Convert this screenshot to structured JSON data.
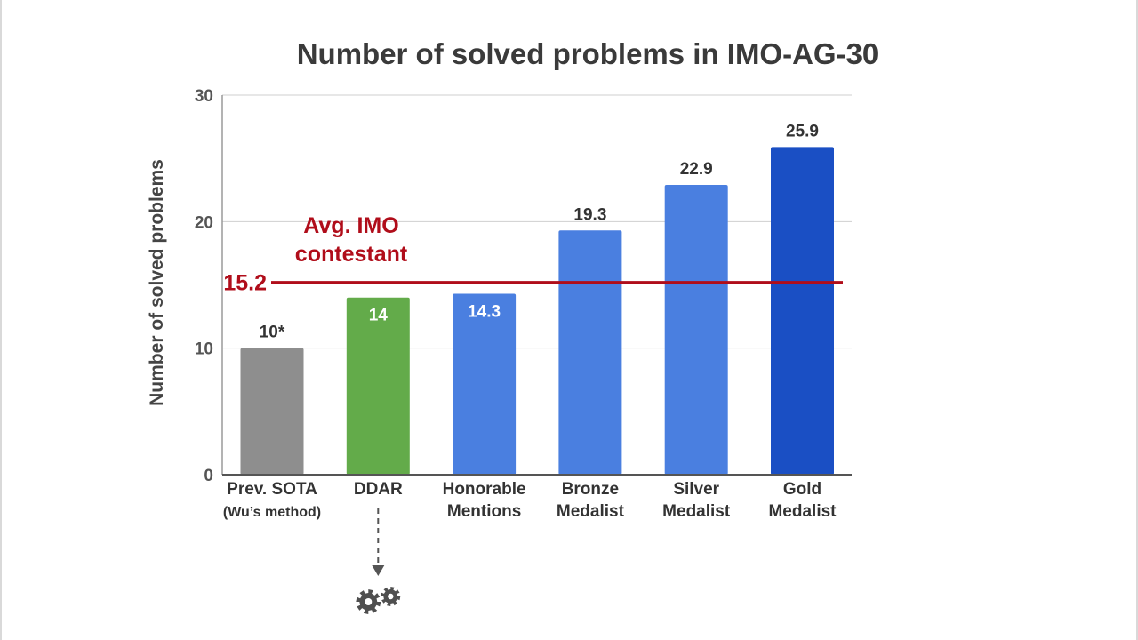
{
  "chart_data": {
    "type": "bar",
    "title": "Number of solved problems in IMO-AG-30",
    "ylabel": "Number of solved problems",
    "xlabel": "",
    "ylim": [
      0,
      30
    ],
    "yticks": [
      {
        "value": 0,
        "label": "0"
      },
      {
        "value": 10,
        "label": "10"
      },
      {
        "value": 20,
        "label": "20"
      },
      {
        "value": 30,
        "label": "30"
      }
    ],
    "grid": true,
    "bars": [
      {
        "category_lines": [
          "Prev. SOTA",
          "(Wu’s method)"
        ],
        "value": 10,
        "value_label": "10*",
        "color": "#8e8e8e",
        "label_inside": false
      },
      {
        "category_lines": [
          "DDAR"
        ],
        "value": 14,
        "value_label": "14",
        "color": "#63ab4a",
        "label_inside": true
      },
      {
        "category_lines": [
          "Honorable",
          "Mentions"
        ],
        "value": 14.3,
        "value_label": "14.3",
        "color": "#4a7fe0",
        "label_inside": true
      },
      {
        "category_lines": [
          "Bronze",
          "Medalist"
        ],
        "value": 19.3,
        "value_label": "19.3",
        "color": "#4a7fe0",
        "label_inside": false
      },
      {
        "category_lines": [
          "Silver",
          "Medalist"
        ],
        "value": 22.9,
        "value_label": "22.9",
        "color": "#4a7fe0",
        "label_inside": false
      },
      {
        "category_lines": [
          "Gold",
          "Medalist"
        ],
        "value": 25.9,
        "value_label": "25.9",
        "color": "#1a4fc4",
        "label_inside": false
      }
    ],
    "reference_line": {
      "value": 15.2,
      "value_label": "15.2",
      "label_lines": [
        "Avg. IMO",
        "contestant"
      ],
      "color": "#b00d1a"
    },
    "annotation": {
      "target_category": "DDAR",
      "icon": "gears-icon"
    }
  }
}
